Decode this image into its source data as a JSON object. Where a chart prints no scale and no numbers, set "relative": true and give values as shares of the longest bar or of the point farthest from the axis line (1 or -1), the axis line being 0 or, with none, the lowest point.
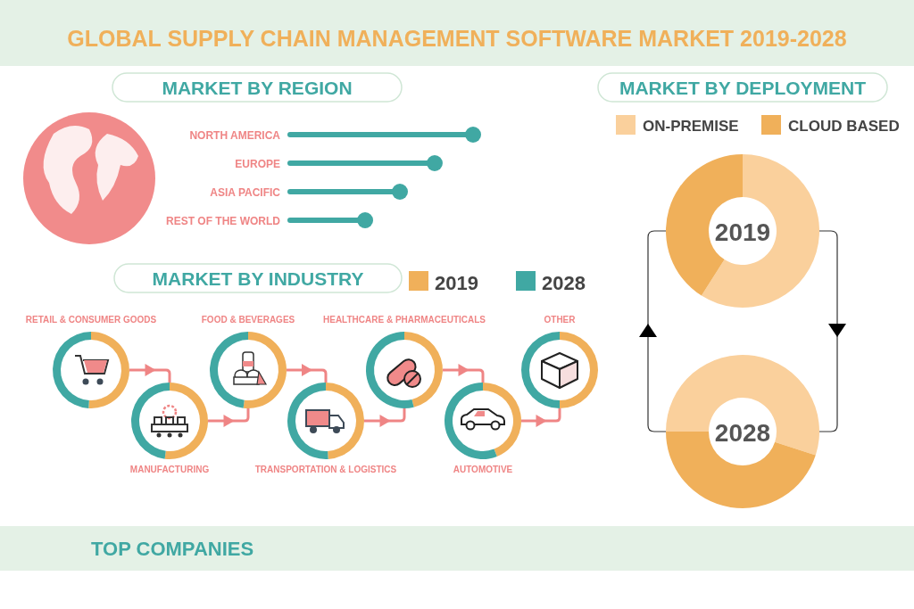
{
  "chart_data": [
    {
      "type": "lollipop",
      "orientation": "horizontal",
      "relative": true,
      "title": "GLOBAL SUPPLY CHAIN MANAGEMENT SOFTWARE MARKET 2019-2028",
      "subtitle": "MARKET BY REGION",
      "categories": [
        "NORTH AMERICA",
        "EUROPE",
        "ASIA PACIFIC",
        "REST OF THE WORLD"
      ],
      "values": [
        1,
        0.79,
        0.6,
        0.41
      ],
      "color": "#40a8a3",
      "annotations": [
        "TOP COMPANIES"
      ]
    },
    {
      "type": "donut",
      "title": "MARKET BY DEPLOYMENT",
      "subtitle": "2019",
      "categories": [
        "ON-PREMISE",
        "CLOUD BASED"
      ],
      "values": [
        59,
        41
      ],
      "colors": [
        "#fad09c",
        "#f0b05a"
      ],
      "legend": "top"
    },
    {
      "type": "donut",
      "subtitle": "2028",
      "categories": [
        null,
        null
      ],
      "values": [
        55,
        45
      ],
      "colors": [
        "#fad09c",
        "#f0b05a"
      ]
    },
    {
      "type": "donut",
      "title": "RETAIL & CONSUMER GOODS",
      "categories": [
        "2019",
        "2028"
      ],
      "values": [
        51,
        49
      ],
      "colors": [
        "#f0b05a",
        "#40a8a3"
      ],
      "legend": "top right"
    },
    {
      "type": "donut",
      "title": "MANUFACTURING",
      "categories": [
        null,
        null
      ],
      "values": [
        52,
        48
      ],
      "colors": [
        "#f0b05a",
        "#40a8a3"
      ]
    },
    {
      "type": "donut",
      "title": "FOOD & BEVERAGES",
      "categories": [
        null,
        null
      ],
      "values": [
        52,
        48
      ],
      "colors": [
        "#f0b05a",
        "#40a8a3"
      ],
      "annotations": [
        "MARKET BY INDUSTRY"
      ]
    },
    {
      "type": "donut",
      "title": "TRANSPORTATION & LOGISTICS",
      "categories": [
        null,
        null
      ],
      "values": [
        49,
        51
      ],
      "colors": [
        "#f0b05a",
        "#40a8a3"
      ]
    },
    {
      "type": "donut",
      "title": "HEALTHCARE & PHARMACEUTICALS",
      "categories": [
        null,
        null
      ],
      "values": [
        46,
        54
      ],
      "colors": [
        "#f0b05a",
        "#40a8a3"
      ]
    },
    {
      "type": "donut",
      "title": "AUTOMOTIVE",
      "categories": [
        null,
        null
      ],
      "values": [
        44,
        56
      ],
      "colors": [
        "#f0b05a",
        "#40a8a3"
      ]
    },
    {
      "type": "donut",
      "title": "OTHER",
      "categories": [
        null,
        null
      ],
      "values": [
        50,
        50
      ],
      "colors": [
        "#f0b05a",
        "#40a8a3"
      ]
    }
  ]
}
